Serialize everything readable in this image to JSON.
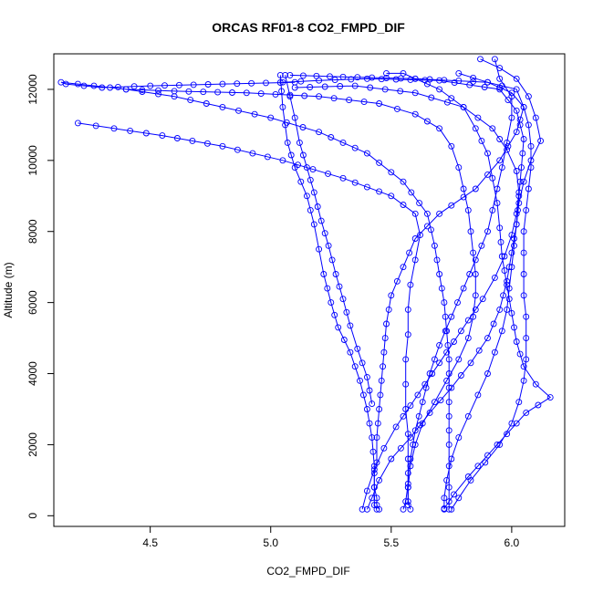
{
  "chart_data": {
    "type": "line",
    "title": "ORCAS RF01-8 CO2_FMPD_DIF",
    "xlabel": "CO2_FMPD_DIF",
    "ylabel": "Altitude (m)",
    "xlim": [
      4.1,
      6.22
    ],
    "ylim": [
      -300,
      13000
    ],
    "xticks": [
      4.5,
      5.0,
      5.5,
      6.0
    ],
    "yticks": [
      0,
      2000,
      4000,
      6000,
      8000,
      10000,
      12000
    ],
    "xtick_labels": [
      "4.5",
      "5.0",
      "5.5",
      "6.0"
    ],
    "ytick_labels": [
      "0",
      "2000",
      "4000",
      "6000",
      "8000",
      "10000",
      "12000"
    ],
    "grid": false,
    "legend": "none",
    "series_color": "#0000ff",
    "marker": "open-circle",
    "series": [
      {
        "values": [
          [
            5.45,
            180
          ],
          [
            5.44,
            300
          ],
          [
            5.44,
            500
          ],
          [
            5.43,
            800
          ],
          [
            5.43,
            1200
          ],
          [
            5.44,
            1500
          ],
          [
            5.44,
            2200
          ],
          [
            5.45,
            3000
          ],
          [
            5.46,
            3800
          ],
          [
            5.47,
            4600
          ],
          [
            5.48,
            5400
          ],
          [
            5.5,
            6200
          ],
          [
            5.55,
            7000
          ],
          [
            5.6,
            7800
          ],
          [
            5.7,
            8500
          ],
          [
            5.85,
            9200
          ],
          [
            5.95,
            10000
          ],
          [
            6.02,
            10800
          ],
          [
            6.05,
            11500
          ],
          [
            6.02,
            12000
          ],
          [
            5.9,
            12200
          ],
          [
            5.6,
            12300
          ],
          [
            5.3,
            12350
          ],
          [
            5.08,
            12400
          ]
        ]
      },
      {
        "values": [
          [
            5.1,
            12200
          ],
          [
            4.8,
            12150
          ],
          [
            4.5,
            12100
          ],
          [
            4.3,
            12050
          ],
          [
            4.15,
            12150
          ],
          [
            4.13,
            12200
          ],
          [
            4.2,
            12150
          ],
          [
            4.4,
            12000
          ],
          [
            4.6,
            11800
          ],
          [
            4.8,
            11500
          ],
          [
            5.0,
            11200
          ],
          [
            5.2,
            10800
          ],
          [
            5.4,
            10200
          ],
          [
            5.55,
            9400
          ],
          [
            5.65,
            8500
          ],
          [
            5.68,
            7600
          ],
          [
            5.7,
            6800
          ],
          [
            5.72,
            6000
          ],
          [
            5.73,
            5200
          ],
          [
            5.74,
            4400
          ],
          [
            5.74,
            3600
          ],
          [
            5.74,
            2800
          ],
          [
            5.74,
            2000
          ],
          [
            5.74,
            1400
          ],
          [
            5.74,
            800
          ],
          [
            5.74,
            400
          ],
          [
            5.74,
            180
          ]
        ]
      },
      {
        "values": [
          [
            5.58,
            180
          ],
          [
            5.57,
            400
          ],
          [
            5.57,
            800
          ],
          [
            5.57,
            1200
          ],
          [
            5.58,
            1600
          ],
          [
            5.6,
            2400
          ],
          [
            5.63,
            3200
          ],
          [
            5.66,
            4000
          ],
          [
            5.7,
            4800
          ],
          [
            5.75,
            5600
          ],
          [
            5.8,
            6400
          ],
          [
            5.85,
            7200
          ],
          [
            5.9,
            8000
          ],
          [
            5.92,
            8600
          ],
          [
            5.94,
            9200
          ],
          [
            5.96,
            9800
          ],
          [
            5.98,
            10500
          ],
          [
            6.0,
            11200
          ],
          [
            6.0,
            11800
          ],
          [
            5.95,
            12300
          ],
          [
            5.93,
            12850
          ]
        ]
      },
      {
        "values": [
          [
            5.04,
            12400
          ],
          [
            5.05,
            11500
          ],
          [
            5.07,
            10500
          ],
          [
            5.1,
            9800
          ],
          [
            5.15,
            9000
          ],
          [
            5.18,
            8200
          ],
          [
            5.2,
            7500
          ],
          [
            5.22,
            6800
          ],
          [
            5.25,
            6000
          ],
          [
            5.28,
            5300
          ],
          [
            5.33,
            4600
          ],
          [
            5.37,
            3800
          ],
          [
            5.4,
            3000
          ],
          [
            5.42,
            2200
          ],
          [
            5.43,
            1400
          ],
          [
            5.43,
            800
          ],
          [
            5.43,
            300
          ],
          [
            5.44,
            180
          ]
        ]
      },
      {
        "values": [
          [
            5.4,
            180
          ],
          [
            5.42,
            500
          ],
          [
            5.45,
            1000
          ],
          [
            5.5,
            1600
          ],
          [
            5.58,
            2200
          ],
          [
            5.66,
            2900
          ],
          [
            5.75,
            3600
          ],
          [
            5.83,
            4300
          ],
          [
            5.9,
            5000
          ],
          [
            5.95,
            5800
          ],
          [
            5.98,
            6600
          ],
          [
            6.0,
            7400
          ],
          [
            6.02,
            8200
          ],
          [
            6.03,
            9000
          ],
          [
            6.04,
            9800
          ],
          [
            6.05,
            10600
          ],
          [
            6.02,
            11400
          ],
          [
            5.95,
            12000
          ],
          [
            5.7,
            12250
          ],
          [
            5.4,
            12300
          ],
          [
            5.2,
            12250
          ],
          [
            5.05,
            12200
          ]
        ]
      },
      {
        "values": [
          [
            5.72,
            200
          ],
          [
            5.76,
            600
          ],
          [
            5.82,
            1100
          ],
          [
            5.9,
            1700
          ],
          [
            5.98,
            2300
          ],
          [
            6.06,
            2900
          ],
          [
            6.16,
            3330
          ],
          [
            6.1,
            3700
          ],
          [
            6.05,
            4200
          ],
          [
            6.02,
            4900
          ],
          [
            6.0,
            5700
          ],
          [
            5.98,
            6500
          ],
          [
            5.96,
            7300
          ],
          [
            5.95,
            8100
          ],
          [
            5.94,
            8800
          ],
          [
            5.92,
            9500
          ],
          [
            5.9,
            10200
          ],
          [
            5.85,
            10900
          ],
          [
            5.8,
            11500
          ],
          [
            5.7,
            12000
          ],
          [
            5.55,
            12450
          ],
          [
            5.48,
            12450
          ]
        ]
      },
      {
        "values": [
          [
            4.2,
            11050
          ],
          [
            4.35,
            10900
          ],
          [
            4.55,
            10700
          ],
          [
            4.8,
            10400
          ],
          [
            5.05,
            10000
          ],
          [
            5.3,
            9500
          ],
          [
            5.5,
            9000
          ],
          [
            5.6,
            8500
          ],
          [
            5.62,
            7900
          ],
          [
            5.6,
            7200
          ],
          [
            5.58,
            6500
          ],
          [
            5.57,
            5800
          ],
          [
            5.57,
            5100
          ],
          [
            5.56,
            4400
          ],
          [
            5.56,
            3700
          ],
          [
            5.56,
            3000
          ],
          [
            5.57,
            2300
          ],
          [
            5.57,
            1600
          ],
          [
            5.57,
            900
          ],
          [
            5.56,
            400
          ],
          [
            5.55,
            180
          ]
        ]
      },
      {
        "values": [
          [
            5.42,
            3150
          ],
          [
            5.4,
            3900
          ],
          [
            5.36,
            4700
          ],
          [
            5.33,
            5350
          ],
          [
            5.3,
            6100
          ],
          [
            5.27,
            6800
          ],
          [
            5.24,
            7600
          ],
          [
            5.21,
            8300
          ],
          [
            5.18,
            9100
          ],
          [
            5.15,
            9800
          ],
          [
            5.12,
            10500
          ],
          [
            5.1,
            11200
          ],
          [
            5.08,
            11800
          ],
          [
            5.06,
            12400
          ]
        ]
      },
      {
        "values": [
          [
            5.87,
            12850
          ],
          [
            5.95,
            12600
          ],
          [
            6.02,
            12300
          ],
          [
            6.07,
            11800
          ],
          [
            6.1,
            11200
          ],
          [
            6.12,
            10550
          ],
          [
            6.08,
            10000
          ],
          [
            6.05,
            9400
          ],
          [
            6.03,
            8800
          ],
          [
            6.02,
            8200
          ],
          [
            6.01,
            7600
          ],
          [
            6.0,
            7000
          ],
          [
            5.99,
            6400
          ],
          [
            5.98,
            5800
          ],
          [
            5.96,
            5200
          ],
          [
            5.93,
            4600
          ],
          [
            5.9,
            4000
          ],
          [
            5.86,
            3400
          ],
          [
            5.82,
            2800
          ],
          [
            5.78,
            2200
          ],
          [
            5.75,
            1600
          ],
          [
            5.73,
            1000
          ],
          [
            5.72,
            500
          ],
          [
            5.72,
            180
          ]
        ]
      },
      {
        "values": [
          [
            4.4,
            12000
          ],
          [
            4.6,
            11950
          ],
          [
            4.9,
            11900
          ],
          [
            5.2,
            11800
          ],
          [
            5.45,
            11600
          ],
          [
            5.6,
            11300
          ],
          [
            5.7,
            10900
          ],
          [
            5.75,
            10400
          ],
          [
            5.78,
            9800
          ],
          [
            5.8,
            9200
          ],
          [
            5.82,
            8600
          ],
          [
            5.83,
            8000
          ],
          [
            5.84,
            7400
          ],
          [
            5.85,
            6800
          ],
          [
            5.85,
            6200
          ],
          [
            5.84,
            5600
          ],
          [
            5.82,
            5000
          ],
          [
            5.78,
            4400
          ],
          [
            5.73,
            3800
          ],
          [
            5.68,
            3200
          ],
          [
            5.63,
            2600
          ],
          [
            5.6,
            2000
          ],
          [
            5.58,
            1400
          ],
          [
            5.57,
            800
          ],
          [
            5.57,
            300
          ]
        ]
      },
      {
        "values": [
          [
            5.38,
            180
          ],
          [
            5.4,
            700
          ],
          [
            5.43,
            1300
          ],
          [
            5.47,
            1900
          ],
          [
            5.52,
            2500
          ],
          [
            5.58,
            3100
          ],
          [
            5.64,
            3700
          ],
          [
            5.7,
            4300
          ],
          [
            5.76,
            4900
          ],
          [
            5.82,
            5500
          ],
          [
            5.88,
            6100
          ],
          [
            5.93,
            6700
          ],
          [
            5.97,
            7300
          ],
          [
            6.0,
            7900
          ],
          [
            6.02,
            8500
          ],
          [
            6.03,
            9100
          ],
          [
            6.02,
            9700
          ],
          [
            5.98,
            10300
          ],
          [
            5.92,
            10900
          ],
          [
            5.8,
            11500
          ],
          [
            5.6,
            11900
          ],
          [
            5.35,
            12100
          ],
          [
            5.1,
            12050
          ]
        ]
      },
      {
        "values": [
          [
            5.75,
            180
          ],
          [
            5.78,
            500
          ],
          [
            5.83,
            1000
          ],
          [
            5.89,
            1500
          ],
          [
            5.95,
            2000
          ],
          [
            6.0,
            2600
          ],
          [
            6.03,
            3200
          ],
          [
            6.05,
            3800
          ],
          [
            6.06,
            4400
          ],
          [
            6.06,
            5000
          ],
          [
            6.06,
            5600
          ],
          [
            6.05,
            6200
          ],
          [
            6.05,
            6800
          ],
          [
            6.05,
            7400
          ],
          [
            6.05,
            8000
          ],
          [
            6.06,
            8600
          ],
          [
            6.07,
            9200
          ],
          [
            6.08,
            9800
          ],
          [
            6.08,
            10400
          ],
          [
            6.07,
            11000
          ],
          [
            6.05,
            11500
          ],
          [
            6.0,
            11900
          ],
          [
            5.9,
            12200
          ],
          [
            5.78,
            12450
          ]
        ]
      }
    ]
  }
}
